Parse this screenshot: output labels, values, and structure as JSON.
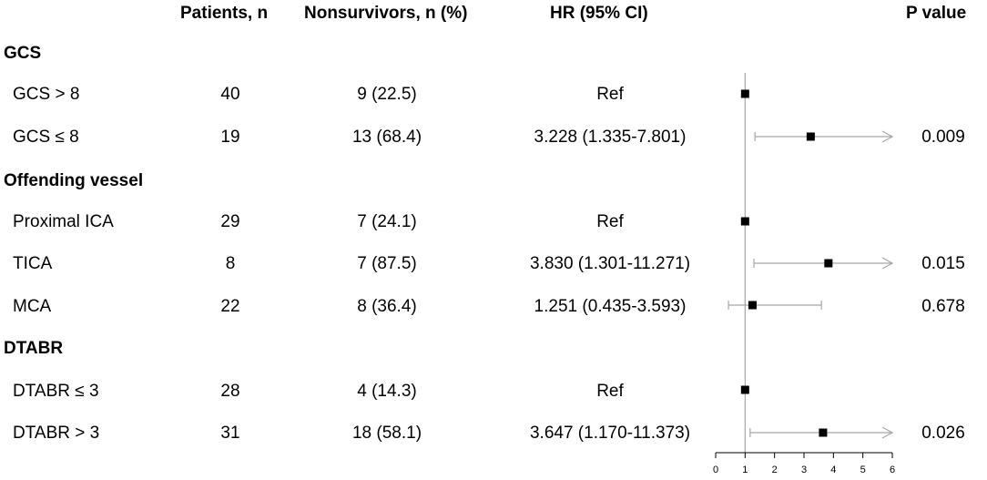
{
  "headers": {
    "patients": "Patients, n",
    "nonsurvivors": "Nonsurvivors, n (%)",
    "hr": "HR (95% CI)",
    "pvalue": "P value"
  },
  "groups": [
    {
      "title": "GCS",
      "rows": [
        {
          "label": "GCS > 8",
          "patients": "40",
          "nonsurvivors": "9 (22.5)",
          "hr_text": "Ref",
          "p": ""
        },
        {
          "label": "GCS ≤ 8",
          "patients": "19",
          "nonsurvivors": "13 (68.4)",
          "hr_text": "3.228 (1.335-7.801)",
          "p": "0.009"
        }
      ]
    },
    {
      "title": "Offending vessel",
      "rows": [
        {
          "label": "Proximal ICA",
          "patients": "29",
          "nonsurvivors": "7 (24.1)",
          "hr_text": "Ref",
          "p": ""
        },
        {
          "label": "TICA",
          "patients": "8",
          "nonsurvivors": "7 (87.5)",
          "hr_text": "3.830 (1.301-11.271)",
          "p": "0.015"
        },
        {
          "label": "MCA",
          "patients": "22",
          "nonsurvivors": "8 (36.4)",
          "hr_text": "1.251 (0.435-3.593)",
          "p": "0.678"
        }
      ]
    },
    {
      "title": "DTABR",
      "rows": [
        {
          "label": "DTABR ≤ 3",
          "patients": "28",
          "nonsurvivors": "4 (14.3)",
          "hr_text": "Ref",
          "p": ""
        },
        {
          "label": "DTABR > 3",
          "patients": "31",
          "nonsurvivors": "18 (58.1)",
          "hr_text": "3.647 (1.170-11.373)",
          "p": "0.026"
        }
      ]
    }
  ],
  "chart_data": {
    "type": "forest",
    "xlim": [
      0,
      6
    ],
    "x_ticks": [
      "0",
      "1",
      "2",
      "3",
      "4",
      "5",
      "6"
    ],
    "reference_line": 1,
    "points": [
      {
        "row": "GCS > 8",
        "hr": 1,
        "lo": null,
        "hi": null,
        "hi_arrow": false
      },
      {
        "row": "GCS ≤ 8",
        "hr": 3.228,
        "lo": 1.335,
        "hi": 7.801,
        "hi_arrow": true
      },
      {
        "row": "Proximal ICA",
        "hr": 1,
        "lo": null,
        "hi": null,
        "hi_arrow": false
      },
      {
        "row": "TICA",
        "hr": 3.83,
        "lo": 1.301,
        "hi": 11.271,
        "hi_arrow": true
      },
      {
        "row": "MCA",
        "hr": 1.251,
        "lo": 0.435,
        "hi": 3.593,
        "hi_arrow": false
      },
      {
        "row": "DTABR ≤ 3",
        "hr": 1,
        "lo": null,
        "hi": null,
        "hi_arrow": false
      },
      {
        "row": "DTABR > 3",
        "hr": 3.647,
        "lo": 1.17,
        "hi": 11.373,
        "hi_arrow": true
      }
    ],
    "colors": {
      "marker": "#000000",
      "ci": "#a6a6a6",
      "axis": "#000000",
      "ref": "#a6a6a6"
    }
  }
}
